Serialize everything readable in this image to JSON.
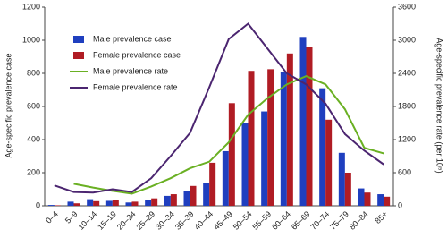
{
  "chart_data": {
    "type": "bar-line",
    "categories": [
      "0–4",
      "5–9",
      "10–14",
      "15–19",
      "20–24",
      "25–29",
      "30–34",
      "35–39",
      "40–44",
      "45–49",
      "50–54",
      "55–59",
      "60–64",
      "65–69",
      "70–74",
      "75–79",
      "80–84",
      "85+"
    ],
    "series": [
      {
        "name": "Male prevalence case",
        "type": "bar",
        "color": "#1f3fbf",
        "values": [
          5,
          25,
          40,
          30,
          20,
          35,
          60,
          90,
          140,
          330,
          500,
          570,
          810,
          1020,
          710,
          320,
          105,
          70
        ]
      },
      {
        "name": "Female prevalence case",
        "type": "bar",
        "color": "#b01c24",
        "values": [
          3,
          15,
          28,
          35,
          25,
          45,
          70,
          120,
          260,
          620,
          815,
          825,
          920,
          960,
          520,
          200,
          80,
          55
        ]
      },
      {
        "name": "Male prevalence rate",
        "type": "line",
        "axis": "y2",
        "color": "#6ab023",
        "values": [
          null,
          400,
          330,
          270,
          220,
          350,
          500,
          680,
          800,
          1150,
          1650,
          1950,
          2200,
          2350,
          2200,
          1750,
          1050,
          950
        ]
      },
      {
        "name": "Female prevalence rate",
        "type": "line",
        "axis": "y2",
        "color": "#4b2570",
        "values": [
          370,
          250,
          240,
          300,
          250,
          500,
          900,
          1320,
          2150,
          3020,
          3300,
          2850,
          2400,
          2200,
          1850,
          1300,
          1000,
          750
        ]
      }
    ],
    "ylabel": "Age-specific prevalence case",
    "y2label": "Age-specific prevalence rate (per 10⁵)",
    "ylim": [
      0,
      1200
    ],
    "yticks": [
      0,
      200,
      400,
      600,
      800,
      1000,
      1200
    ],
    "y2lim": [
      0,
      3600
    ],
    "y2ticks": [
      0,
      600,
      1200,
      1800,
      2400,
      3000,
      3600
    ],
    "legend": "upper left"
  }
}
